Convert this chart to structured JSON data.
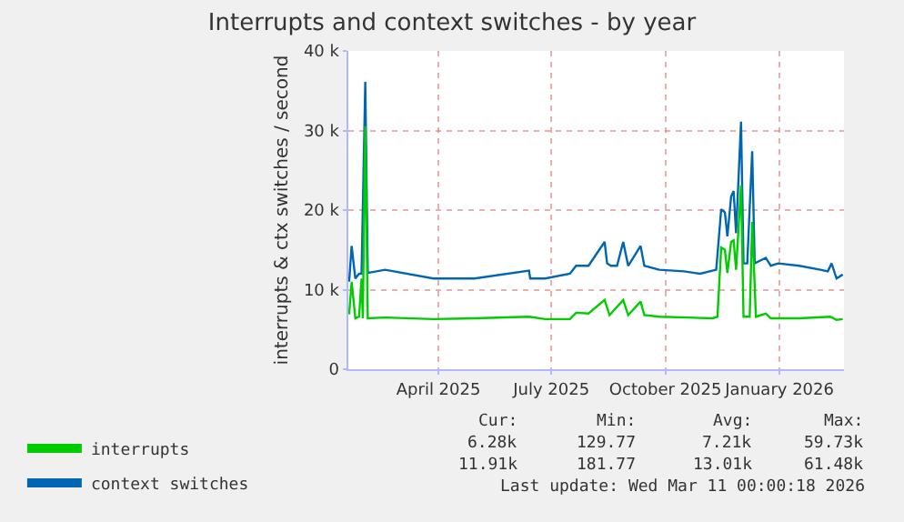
{
  "chart_data": {
    "type": "line",
    "title": "Interrupts and context switches - by year",
    "ylabel": "interrupts & ctx switches / second",
    "xlim": [
      "2025-01-18",
      "2026-02-22"
    ],
    "xticks": [
      {
        "value": "2025-04-01",
        "label": "April 2025"
      },
      {
        "value": "2025-07-01",
        "label": "July 2025"
      },
      {
        "value": "2025-10-01",
        "label": "October 2025"
      },
      {
        "value": "2026-01-01",
        "label": "January 2026"
      }
    ],
    "ylim": [
      0,
      40000
    ],
    "yticks": [
      0,
      {
        "value": 10000,
        "label": "10 k"
      },
      {
        "value": 20000,
        "label": "20 k"
      },
      {
        "value": 30000,
        "label": "30 k"
      },
      {
        "value": 40000,
        "label": "40 k"
      }
    ],
    "grid": true,
    "legend": "bottom left",
    "marker": "none",
    "line_style": "solid",
    "series": [
      {
        "name": "interrupts",
        "color": "#00cc00",
        "x": [
          "2025-01-19",
          "2025-01-21",
          "2025-01-24",
          "2025-01-27",
          "2025-01-29",
          "2025-01-30",
          "2025-02-01",
          "2025-02-03",
          "2025-02-17",
          "2025-03-28",
          "2025-04-30",
          "2025-06-13",
          "2025-06-26",
          "2025-07-16",
          "2025-07-21",
          "2025-07-31",
          "2025-08-13",
          "2025-08-17",
          "2025-08-28",
          "2025-09-01",
          "2025-09-11",
          "2025-09-14",
          "2025-09-26",
          "2025-11-08",
          "2025-11-12",
          "2025-11-15",
          "2025-11-18",
          "2025-11-20",
          "2025-11-23",
          "2025-11-25",
          "2025-11-27",
          "2025-12-01",
          "2025-12-03",
          "2025-12-08",
          "2025-12-10",
          "2025-12-13",
          "2025-12-21",
          "2025-12-25",
          "2026-01-17",
          "2026-02-11",
          "2026-02-16",
          "2026-02-21"
        ],
        "values": [
          6900,
          11000,
          6400,
          6600,
          11400,
          6400,
          30500,
          6400,
          6500,
          6300,
          6400,
          6600,
          6300,
          6300,
          7100,
          7000,
          8700,
          6800,
          8700,
          6800,
          8500,
          6800,
          6600,
          6400,
          6600,
          15300,
          15000,
          12100,
          16000,
          16200,
          12500,
          23100,
          6600,
          6600,
          18500,
          6600,
          7000,
          6400,
          6400,
          6600,
          6200,
          6300
        ]
      },
      {
        "name": "context switches",
        "color": "#0066b3",
        "x": [
          "2025-01-19",
          "2025-01-21",
          "2025-01-24",
          "2025-01-27",
          "2025-01-29",
          "2025-02-01",
          "2025-02-03",
          "2025-02-17",
          "2025-03-28",
          "2025-04-30",
          "2025-06-13",
          "2025-06-14",
          "2025-06-26",
          "2025-07-16",
          "2025-07-21",
          "2025-07-31",
          "2025-08-13",
          "2025-08-15",
          "2025-08-18",
          "2025-08-23",
          "2025-08-28",
          "2025-09-01",
          "2025-09-11",
          "2025-09-14",
          "2025-09-26",
          "2025-10-16",
          "2025-10-29",
          "2025-11-11",
          "2025-11-15",
          "2025-11-18",
          "2025-11-20",
          "2025-11-23",
          "2025-11-25",
          "2025-11-27",
          "2025-12-01",
          "2025-12-03",
          "2025-12-06",
          "2025-12-10",
          "2025-12-12",
          "2025-12-21",
          "2025-12-25",
          "2025-12-31",
          "2026-01-17",
          "2026-02-03",
          "2026-02-09",
          "2026-02-12",
          "2026-02-16",
          "2026-02-21"
        ],
        "values": [
          11000,
          15500,
          11400,
          12000,
          12000,
          36100,
          12100,
          12500,
          11400,
          11400,
          12400,
          11400,
          11400,
          12000,
          13000,
          13000,
          16000,
          13300,
          13000,
          13000,
          16000,
          13000,
          15500,
          13000,
          12500,
          12300,
          12000,
          12500,
          20100,
          19700,
          16700,
          21700,
          22400,
          17100,
          31100,
          13300,
          13300,
          27400,
          13300,
          14000,
          13000,
          13300,
          13000,
          12500,
          12300,
          13300,
          11400,
          11900
        ]
      }
    ],
    "annotations": [
      "Cur:",
      "Min:",
      "Avg:",
      "Max:",
      "6.28k",
      "129.77",
      "7.21k",
      "59.73k",
      "11.91k",
      "181.77",
      "13.01k",
      "61.48k",
      "Last update: Wed Mar 11 00:00:18 2026"
    ]
  }
}
